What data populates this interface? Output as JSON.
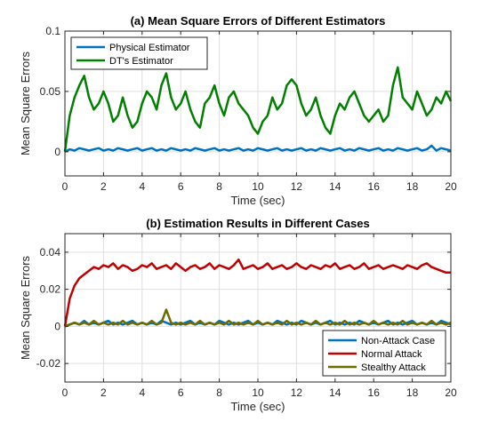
{
  "chart_data": [
    {
      "type": "line",
      "title": "(a) Mean Square Errors of Different Estimators",
      "xlabel": "Time (sec)",
      "ylabel": "Mean Square Errors",
      "xlim": [
        0,
        20
      ],
      "ylim": [
        -0.02,
        0.1
      ],
      "xticks": [
        "0",
        "2",
        "4",
        "6",
        "8",
        "10",
        "12",
        "14",
        "16",
        "18",
        "20"
      ],
      "yticks": [
        "0",
        "0.05",
        "0.1"
      ],
      "ytick_values": [
        0,
        0.05,
        0.1
      ],
      "grid": true,
      "legend_position": "top-left",
      "x": [
        0,
        0.25,
        0.5,
        0.75,
        1,
        1.25,
        1.5,
        1.75,
        2,
        2.25,
        2.5,
        2.75,
        3,
        3.25,
        3.5,
        3.75,
        4,
        4.25,
        4.5,
        4.75,
        5,
        5.25,
        5.5,
        5.75,
        6,
        6.25,
        6.5,
        6.75,
        7,
        7.25,
        7.5,
        7.75,
        8,
        8.25,
        8.5,
        8.75,
        9,
        9.25,
        9.5,
        9.75,
        10,
        10.25,
        10.5,
        10.75,
        11,
        11.25,
        11.5,
        11.75,
        12,
        12.25,
        12.5,
        12.75,
        13,
        13.25,
        13.5,
        13.75,
        14,
        14.25,
        14.5,
        14.75,
        15,
        15.25,
        15.5,
        15.75,
        16,
        16.25,
        16.5,
        16.75,
        17,
        17.25,
        17.5,
        17.75,
        18,
        18.25,
        18.5,
        18.75,
        19,
        19.25,
        19.5,
        19.75,
        20
      ],
      "series": [
        {
          "name": "Physical Estimator",
          "color": "#0072bd",
          "values": [
            0,
            0.002,
            0.001,
            0.003,
            0.002,
            0.001,
            0.002,
            0.003,
            0.001,
            0.002,
            0.001,
            0.003,
            0.002,
            0.001,
            0.002,
            0.003,
            0.001,
            0.002,
            0.003,
            0.001,
            0.002,
            0.001,
            0.003,
            0.002,
            0.001,
            0.002,
            0.001,
            0.003,
            0.002,
            0.001,
            0.002,
            0.003,
            0.001,
            0.002,
            0.001,
            0.002,
            0.003,
            0.001,
            0.002,
            0.001,
            0.003,
            0.002,
            0.001,
            0.002,
            0.003,
            0.001,
            0.002,
            0.001,
            0.002,
            0.003,
            0.001,
            0.002,
            0.001,
            0.003,
            0.002,
            0.001,
            0.002,
            0.003,
            0.001,
            0.002,
            0.001,
            0.003,
            0.002,
            0.001,
            0.002,
            0.003,
            0.001,
            0.002,
            0.001,
            0.003,
            0.002,
            0.001,
            0.002,
            0.003,
            0.001,
            0.002,
            0.005,
            0.001,
            0.003,
            0.002,
            0.001
          ]
        },
        {
          "name": "DT's Estimator",
          "color": "#007f00",
          "values": [
            0,
            0.03,
            0.045,
            0.055,
            0.063,
            0.045,
            0.035,
            0.04,
            0.05,
            0.04,
            0.025,
            0.03,
            0.045,
            0.03,
            0.02,
            0.025,
            0.04,
            0.05,
            0.045,
            0.035,
            0.055,
            0.065,
            0.045,
            0.035,
            0.04,
            0.05,
            0.035,
            0.025,
            0.02,
            0.04,
            0.045,
            0.055,
            0.04,
            0.03,
            0.045,
            0.05,
            0.04,
            0.035,
            0.03,
            0.02,
            0.015,
            0.025,
            0.03,
            0.045,
            0.035,
            0.04,
            0.055,
            0.06,
            0.055,
            0.04,
            0.03,
            0.035,
            0.045,
            0.03,
            0.02,
            0.015,
            0.03,
            0.04,
            0.035,
            0.045,
            0.05,
            0.04,
            0.03,
            0.025,
            0.03,
            0.035,
            0.025,
            0.03,
            0.055,
            0.07,
            0.045,
            0.04,
            0.035,
            0.05,
            0.04,
            0.03,
            0.035,
            0.045,
            0.04,
            0.05,
            0.042
          ]
        }
      ]
    },
    {
      "type": "line",
      "title": "(b) Estimation Results in Different Cases",
      "xlabel": "Time (sec)",
      "ylabel": "Mean Square Errors",
      "xlim": [
        0,
        20
      ],
      "ylim": [
        -0.03,
        0.05
      ],
      "xticks": [
        "0",
        "2",
        "4",
        "6",
        "8",
        "10",
        "12",
        "14",
        "16",
        "18",
        "20"
      ],
      "yticks": [
        "-0.02",
        "0",
        "0.02",
        "0.04"
      ],
      "ytick_values": [
        -0.02,
        0,
        0.02,
        0.04
      ],
      "grid": true,
      "legend_position": "bottom-right",
      "x": [
        0,
        0.25,
        0.5,
        0.75,
        1,
        1.25,
        1.5,
        1.75,
        2,
        2.25,
        2.5,
        2.75,
        3,
        3.25,
        3.5,
        3.75,
        4,
        4.25,
        4.5,
        4.75,
        5,
        5.25,
        5.5,
        5.75,
        6,
        6.25,
        6.5,
        6.75,
        7,
        7.25,
        7.5,
        7.75,
        8,
        8.25,
        8.5,
        8.75,
        9,
        9.25,
        9.5,
        9.75,
        10,
        10.25,
        10.5,
        10.75,
        11,
        11.25,
        11.5,
        11.75,
        12,
        12.25,
        12.5,
        12.75,
        13,
        13.25,
        13.5,
        13.75,
        14,
        14.25,
        14.5,
        14.75,
        15,
        15.25,
        15.5,
        15.75,
        16,
        16.25,
        16.5,
        16.75,
        17,
        17.25,
        17.5,
        17.75,
        18,
        18.25,
        18.5,
        18.75,
        19,
        19.25,
        19.5,
        19.75,
        20
      ],
      "series": [
        {
          "name": "Non-Attack Case",
          "color": "#0072bd",
          "values": [
            0,
            0.001,
            0.002,
            0.001,
            0.003,
            0.001,
            0.002,
            0.001,
            0.002,
            0.003,
            0.001,
            0.002,
            0.001,
            0.002,
            0.003,
            0.001,
            0.002,
            0.001,
            0.002,
            0.001,
            0.003,
            0.002,
            0.001,
            0.002,
            0.001,
            0.002,
            0.003,
            0.001,
            0.002,
            0.001,
            0.002,
            0.001,
            0.003,
            0.002,
            0.001,
            0.002,
            0.001,
            0.002,
            0.003,
            0.001,
            0.002,
            0.001,
            0.002,
            0.001,
            0.003,
            0.002,
            0.001,
            0.002,
            0.001,
            0.003,
            0.002,
            0.001,
            0.002,
            0.001,
            0.002,
            0.003,
            0.001,
            0.002,
            0.001,
            0.002,
            0.001,
            0.003,
            0.002,
            0.001,
            0.002,
            0.001,
            0.002,
            0.003,
            0.001,
            0.002,
            0.001,
            0.002,
            0.003,
            0.001,
            0.002,
            0.001,
            0.002,
            0.001,
            0.003,
            0.002,
            0.001
          ]
        },
        {
          "name": "Normal Attack",
          "color": "#c00000",
          "values": [
            0,
            0.015,
            0.022,
            0.026,
            0.028,
            0.03,
            0.032,
            0.031,
            0.033,
            0.032,
            0.034,
            0.031,
            0.033,
            0.032,
            0.03,
            0.031,
            0.033,
            0.032,
            0.034,
            0.031,
            0.032,
            0.033,
            0.031,
            0.034,
            0.032,
            0.03,
            0.032,
            0.033,
            0.031,
            0.032,
            0.034,
            0.031,
            0.033,
            0.032,
            0.031,
            0.033,
            0.036,
            0.031,
            0.032,
            0.033,
            0.031,
            0.032,
            0.034,
            0.031,
            0.032,
            0.033,
            0.031,
            0.032,
            0.034,
            0.032,
            0.031,
            0.033,
            0.032,
            0.031,
            0.033,
            0.032,
            0.034,
            0.031,
            0.032,
            0.033,
            0.031,
            0.032,
            0.034,
            0.031,
            0.032,
            0.033,
            0.031,
            0.032,
            0.033,
            0.032,
            0.031,
            0.033,
            0.032,
            0.031,
            0.033,
            0.034,
            0.032,
            0.031,
            0.03,
            0.029,
            0.029
          ]
        },
        {
          "name": "Stealthy Attack",
          "color": "#6b6b00",
          "values": [
            0,
            0.001,
            0.002,
            0.001,
            0.002,
            0.001,
            0.003,
            0.001,
            0.002,
            0.001,
            0.002,
            0.001,
            0.003,
            0.001,
            0.002,
            0.001,
            0.002,
            0.001,
            0.003,
            0.001,
            0.002,
            0.009,
            0.002,
            0.001,
            0.002,
            0.001,
            0.002,
            0.001,
            0.003,
            0.001,
            0.002,
            0.001,
            0.002,
            0.001,
            0.003,
            0.001,
            0.002,
            0.001,
            0.002,
            0.001,
            0.003,
            0.001,
            0.002,
            0.001,
            0.002,
            0.001,
            0.003,
            0.001,
            0.002,
            0.001,
            0.002,
            0.001,
            0.003,
            0.001,
            0.002,
            0.001,
            0.002,
            0.001,
            0.003,
            0.001,
            0.002,
            0.001,
            0.002,
            0.001,
            0.003,
            0.001,
            0.002,
            0.001,
            0.002,
            0.001,
            0.003,
            0.001,
            0.002,
            0.001,
            0.002,
            0.001,
            0.003,
            0.001,
            0.002,
            0.001,
            0.002
          ]
        }
      ]
    }
  ]
}
